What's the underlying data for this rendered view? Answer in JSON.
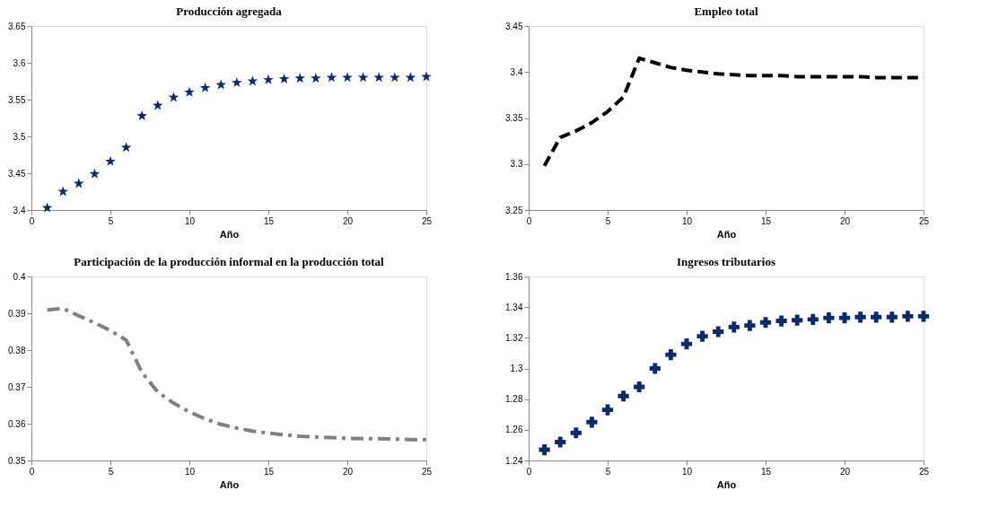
{
  "chart_data": [
    {
      "type": "scatter",
      "title": "Producción agregada",
      "xlabel": "Año",
      "marker": "star",
      "grid": false,
      "xlim": [
        0,
        25
      ],
      "xticks": [
        0,
        5,
        10,
        15,
        20,
        25
      ],
      "ylim": [
        3.4,
        3.65
      ],
      "yticks": [
        3.4,
        3.45,
        3.5,
        3.55,
        3.6,
        3.65
      ],
      "x": [
        1,
        2,
        3,
        4,
        5,
        6,
        7,
        8,
        9,
        10,
        11,
        12,
        13,
        14,
        15,
        16,
        17,
        18,
        19,
        20,
        21,
        22,
        23,
        24,
        25
      ],
      "series": [
        {
          "color": "#0f2a6b",
          "values": [
            3.403,
            3.425,
            3.436,
            3.449,
            3.466,
            3.485,
            3.528,
            3.542,
            3.553,
            3.56,
            3.566,
            3.57,
            3.573,
            3.575,
            3.577,
            3.578,
            3.579,
            3.579,
            3.58,
            3.58,
            3.58,
            3.58,
            3.58,
            3.58,
            3.581
          ]
        }
      ]
    },
    {
      "type": "line",
      "title": "Empleo total",
      "xlabel": "Año",
      "line_style": "dashed",
      "grid": false,
      "xlim": [
        0,
        25
      ],
      "xticks": [
        0,
        5,
        10,
        15,
        20,
        25
      ],
      "ylim": [
        3.25,
        3.45
      ],
      "yticks": [
        3.25,
        3.3,
        3.35,
        3.4,
        3.45
      ],
      "x": [
        1,
        2,
        3,
        4,
        5,
        6,
        7,
        8,
        9,
        10,
        11,
        12,
        13,
        14,
        15,
        16,
        17,
        18,
        19,
        20,
        21,
        22,
        23,
        24,
        25
      ],
      "series": [
        {
          "color": "#000000",
          "values": [
            3.298,
            3.329,
            3.336,
            3.345,
            3.357,
            3.373,
            3.415,
            3.41,
            3.405,
            3.402,
            3.4,
            3.398,
            3.397,
            3.396,
            3.396,
            3.396,
            3.395,
            3.395,
            3.395,
            3.395,
            3.395,
            3.394,
            3.394,
            3.394,
            3.394
          ]
        }
      ]
    },
    {
      "type": "line",
      "title": "Participación de la producción informal en la producción total",
      "xlabel": "Año",
      "line_style": "dashed",
      "grid": false,
      "xlim": [
        0,
        25
      ],
      "xticks": [
        0,
        5,
        10,
        15,
        20,
        25
      ],
      "ylim": [
        0.35,
        0.4
      ],
      "yticks": [
        0.35,
        0.36,
        0.37,
        0.38,
        0.39,
        0.4
      ],
      "x": [
        1,
        2,
        3,
        4,
        5,
        6,
        7,
        8,
        9,
        10,
        11,
        12,
        13,
        14,
        15,
        16,
        17,
        18,
        19,
        20,
        21,
        22,
        23,
        24,
        25
      ],
      "series": [
        {
          "color": "#808080",
          "values": [
            0.3909,
            0.3913,
            0.3893,
            0.3874,
            0.3853,
            0.3827,
            0.3739,
            0.3686,
            0.3656,
            0.3632,
            0.3613,
            0.3598,
            0.3588,
            0.358,
            0.3574,
            0.357,
            0.3566,
            0.3564,
            0.3562,
            0.356,
            0.3559,
            0.3559,
            0.3558,
            0.3557,
            0.3557
          ]
        }
      ]
    },
    {
      "type": "scatter",
      "title": "Ingresos tributarios",
      "xlabel": "Año",
      "marker": "cross",
      "grid": false,
      "xlim": [
        0,
        25
      ],
      "xticks": [
        0,
        5,
        10,
        15,
        20,
        25
      ],
      "ylim": [
        1.24,
        1.36
      ],
      "yticks": [
        1.24,
        1.26,
        1.28,
        1.3,
        1.32,
        1.34,
        1.36
      ],
      "x": [
        1,
        2,
        3,
        4,
        5,
        6,
        7,
        8,
        9,
        10,
        11,
        12,
        13,
        14,
        15,
        16,
        17,
        18,
        19,
        20,
        21,
        22,
        23,
        24,
        25
      ],
      "series": [
        {
          "color": "#0f2a6b",
          "values": [
            1.247,
            1.252,
            1.258,
            1.265,
            1.273,
            1.282,
            1.288,
            1.3,
            1.309,
            1.316,
            1.321,
            1.324,
            1.327,
            1.328,
            1.33,
            1.331,
            1.3315,
            1.332,
            1.333,
            1.333,
            1.3335,
            1.3335,
            1.3335,
            1.334,
            1.334
          ]
        }
      ]
    }
  ]
}
